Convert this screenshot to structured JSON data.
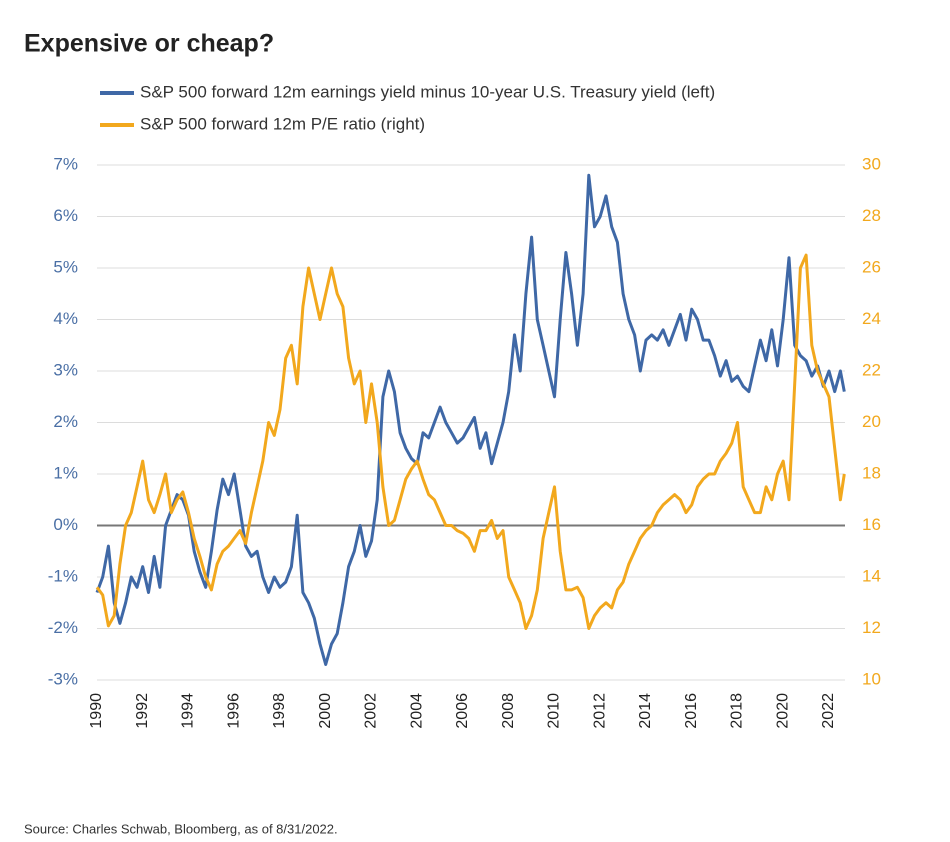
{
  "chart_data": {
    "type": "line",
    "title": "Expensive or cheap?",
    "source": "Source: Charles Schwab, Bloomberg, as of 8/31/2022.",
    "x": [
      1990.0,
      1990.25,
      1990.5,
      1990.75,
      1991.0,
      1991.25,
      1991.5,
      1991.75,
      1992.0,
      1992.25,
      1992.5,
      1992.75,
      1993.0,
      1993.25,
      1993.5,
      1993.75,
      1994.0,
      1994.25,
      1994.5,
      1994.75,
      1995.0,
      1995.25,
      1995.5,
      1995.75,
      1996.0,
      1996.25,
      1996.5,
      1996.75,
      1997.0,
      1997.25,
      1997.5,
      1997.75,
      1998.0,
      1998.25,
      1998.5,
      1998.75,
      1999.0,
      1999.25,
      1999.5,
      1999.75,
      2000.0,
      2000.25,
      2000.5,
      2000.75,
      2001.0,
      2001.25,
      2001.5,
      2001.75,
      2002.0,
      2002.25,
      2002.5,
      2002.75,
      2003.0,
      2003.25,
      2003.5,
      2003.75,
      2004.0,
      2004.25,
      2004.5,
      2004.75,
      2005.0,
      2005.25,
      2005.5,
      2005.75,
      2006.0,
      2006.25,
      2006.5,
      2006.75,
      2007.0,
      2007.25,
      2007.5,
      2007.75,
      2008.0,
      2008.25,
      2008.5,
      2008.75,
      2009.0,
      2009.25,
      2009.5,
      2009.75,
      2010.0,
      2010.25,
      2010.5,
      2010.75,
      2011.0,
      2011.25,
      2011.5,
      2011.75,
      2012.0,
      2012.25,
      2012.5,
      2012.75,
      2013.0,
      2013.25,
      2013.5,
      2013.75,
      2014.0,
      2014.25,
      2014.5,
      2014.75,
      2015.0,
      2015.25,
      2015.5,
      2015.75,
      2016.0,
      2016.25,
      2016.5,
      2016.75,
      2017.0,
      2017.25,
      2017.5,
      2017.75,
      2018.0,
      2018.25,
      2018.5,
      2018.75,
      2019.0,
      2019.25,
      2019.5,
      2019.75,
      2020.0,
      2020.25,
      2020.5,
      2020.75,
      2021.0,
      2021.25,
      2021.5,
      2021.75,
      2022.0,
      2022.25,
      2022.5,
      2022.67
    ],
    "series": [
      {
        "name": "S&P 500 forward 12m earnings yield minus 10-year U.S. Treasury yield (left)",
        "color": "#3f68a6",
        "axis": "y",
        "values": [
          -1.3,
          -1.0,
          -0.4,
          -1.5,
          -1.9,
          -1.5,
          -1.0,
          -1.2,
          -0.8,
          -1.3,
          -0.6,
          -1.2,
          0.0,
          0.3,
          0.6,
          0.5,
          0.2,
          -0.5,
          -0.9,
          -1.2,
          -0.5,
          0.3,
          0.9,
          0.6,
          1.0,
          0.3,
          -0.4,
          -0.6,
          -0.5,
          -1.0,
          -1.3,
          -1.0,
          -1.2,
          -1.1,
          -0.8,
          0.2,
          -1.3,
          -1.5,
          -1.8,
          -2.3,
          -2.7,
          -2.3,
          -2.1,
          -1.5,
          -0.8,
          -0.5,
          0.0,
          -0.6,
          -0.3,
          0.5,
          2.5,
          3.0,
          2.6,
          1.8,
          1.5,
          1.3,
          1.2,
          1.8,
          1.7,
          2.0,
          2.3,
          2.0,
          1.8,
          1.6,
          1.7,
          1.9,
          2.1,
          1.5,
          1.8,
          1.2,
          1.6,
          2.0,
          2.6,
          3.7,
          3.0,
          4.5,
          5.6,
          4.0,
          3.5,
          3.0,
          2.5,
          4.0,
          5.3,
          4.5,
          3.5,
          4.5,
          6.8,
          5.8,
          6.0,
          6.4,
          5.8,
          5.5,
          4.5,
          4.0,
          3.7,
          3.0,
          3.6,
          3.7,
          3.6,
          3.8,
          3.5,
          3.8,
          4.1,
          3.6,
          4.2,
          4.0,
          3.6,
          3.6,
          3.3,
          2.9,
          3.2,
          2.8,
          2.9,
          2.7,
          2.6,
          3.1,
          3.6,
          3.2,
          3.8,
          3.1,
          4.0,
          5.2,
          3.5,
          3.3,
          3.2,
          2.9,
          3.1,
          2.7,
          3.0,
          2.6,
          3.0,
          2.6
        ]
      },
      {
        "name": "S&P 500 forward 12m P/E ratio (right)",
        "color": "#f2a81d",
        "axis": "y2",
        "values": [
          13.6,
          13.3,
          12.1,
          12.5,
          14.5,
          16.0,
          16.5,
          17.5,
          18.5,
          17.0,
          16.5,
          17.2,
          18.0,
          16.5,
          17.0,
          17.3,
          16.5,
          15.5,
          14.8,
          14.0,
          13.5,
          14.5,
          15.0,
          15.2,
          15.5,
          15.8,
          15.3,
          16.5,
          17.5,
          18.5,
          20.0,
          19.5,
          20.5,
          22.5,
          23.0,
          21.5,
          24.5,
          26.0,
          25.0,
          24.0,
          25.0,
          26.0,
          25.0,
          24.5,
          22.5,
          21.5,
          22.0,
          20.0,
          21.5,
          20.0,
          17.5,
          16.0,
          16.2,
          17.0,
          17.8,
          18.2,
          18.5,
          17.8,
          17.2,
          17.0,
          16.5,
          16.0,
          16.0,
          15.8,
          15.7,
          15.5,
          15.0,
          15.8,
          15.8,
          16.2,
          15.5,
          15.8,
          14.0,
          13.5,
          13.0,
          12.0,
          12.5,
          13.5,
          15.5,
          16.5,
          17.5,
          15.0,
          13.5,
          13.5,
          13.6,
          13.2,
          12.0,
          12.5,
          12.8,
          13.0,
          12.8,
          13.5,
          13.8,
          14.5,
          15.0,
          15.5,
          15.8,
          16.0,
          16.5,
          16.8,
          17.0,
          17.2,
          17.0,
          16.5,
          16.8,
          17.5,
          17.8,
          18.0,
          18.0,
          18.5,
          18.8,
          19.2,
          20.0,
          17.5,
          17.0,
          16.5,
          16.5,
          17.5,
          17.0,
          18.0,
          18.5,
          17.0,
          21.5,
          26.0,
          26.5,
          23.0,
          22.0,
          21.5,
          21.0,
          19.0,
          17.0,
          18.0
        ]
      }
    ],
    "xlim": [
      1990,
      2022.7
    ],
    "xticks": [
      1990,
      1992,
      1994,
      1996,
      1998,
      2000,
      2002,
      2004,
      2006,
      2008,
      2010,
      2012,
      2014,
      2016,
      2018,
      2020,
      2022
    ],
    "ylim": [
      -3,
      7
    ],
    "yticks": [
      {
        "value": -3,
        "label": "-3%"
      },
      {
        "value": -2,
        "label": "-2%"
      },
      {
        "value": -1,
        "label": "-1%"
      },
      {
        "value": 0,
        "label": "0%"
      },
      {
        "value": 1,
        "label": "1%"
      },
      {
        "value": 2,
        "label": "2%"
      },
      {
        "value": 3,
        "label": "3%"
      },
      {
        "value": 4,
        "label": "4%"
      },
      {
        "value": 5,
        "label": "5%"
      },
      {
        "value": 6,
        "label": "6%"
      },
      {
        "value": 7,
        "label": "7%"
      }
    ],
    "y2lim": [
      10,
      30
    ],
    "y2ticks": [
      10,
      12,
      14,
      16,
      18,
      20,
      22,
      24,
      26,
      28,
      30
    ],
    "grid": true
  }
}
